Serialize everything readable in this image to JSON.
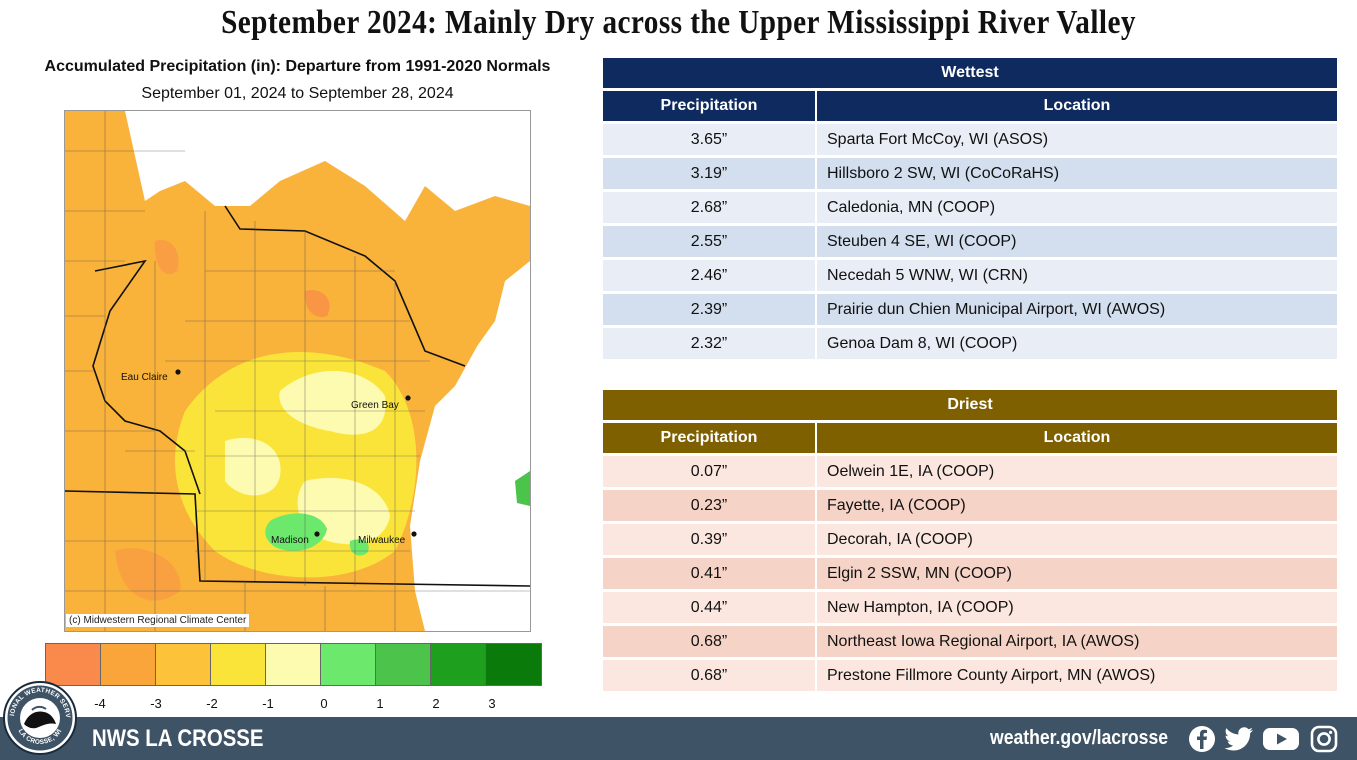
{
  "title": "September 2024:  Mainly Dry across the Upper Mississippi River Valley",
  "map": {
    "heading": "Accumulated Precipitation (in): Departure from 1991-2020 Normals",
    "dates": "September 01, 2024 to September 28, 2024",
    "credit": "(c) Midwestern Regional Climate Center",
    "cities": [
      "Eau Claire",
      "Green Bay",
      "Madison",
      "Milwaukee"
    ],
    "scale_colors": [
      "#f98a4c",
      "#f9a53a",
      "#fbc23a",
      "#fbe43a",
      "#fdfbb0",
      "#6ce86c",
      "#4cc44c",
      "#1ea01e",
      "#0a7a0a"
    ],
    "scale_labels": [
      "-4",
      "-3",
      "-2",
      "-1",
      "0",
      "1",
      "2",
      "3"
    ]
  },
  "wettest": {
    "title": "Wettest",
    "col_precip": "Precipitation",
    "col_location": "Location",
    "band_color": "#0f2a5e",
    "rows": [
      {
        "precip": "3.65”",
        "location": "Sparta Fort McCoy, WI (ASOS)"
      },
      {
        "precip": "3.19”",
        "location": "Hillsboro 2 SW, WI  (CoCoRaHS)"
      },
      {
        "precip": "2.68”",
        "location": "Caledonia, MN (COOP)"
      },
      {
        "precip": "2.55”",
        "location": "Steuben 4 SE, WI (COOP)"
      },
      {
        "precip": "2.46”",
        "location": "Necedah 5 WNW, WI (CRN)"
      },
      {
        "precip": "2.39”",
        "location": "Prairie dun Chien Municipal Airport, WI (AWOS)"
      },
      {
        "precip": "2.32”",
        "location": "Genoa Dam 8, WI (COOP)"
      }
    ]
  },
  "driest": {
    "title": "Driest",
    "col_precip": "Precipitation",
    "col_location": "Location",
    "band_color": "#7f6000",
    "rows": [
      {
        "precip": "0.07”",
        "location": "Oelwein 1E, IA (COOP)"
      },
      {
        "precip": "0.23”",
        "location": "Fayette, IA (COOP)"
      },
      {
        "precip": "0.39”",
        "location": "Decorah, IA (COOP)"
      },
      {
        "precip": "0.41”",
        "location": "Elgin 2 SSW, MN (COOP)"
      },
      {
        "precip": "0.44”",
        "location": "New Hampton, IA (COOP)"
      },
      {
        "precip": "0.68”",
        "location": "Northeast Iowa Regional Airport, IA (AWOS)"
      },
      {
        "precip": "0.68”",
        "location": "Prestone Fillmore County Airport, MN (AWOS)"
      }
    ]
  },
  "footer": {
    "office": "NWS LA CROSSE",
    "website": "weather.gov/lacrosse",
    "logo_ring_top": "NATIONAL WEATHER SERVICE",
    "logo_ring_bottom": "LA CROSSE, WI",
    "social_icons": [
      "facebook-icon",
      "twitter-icon",
      "youtube-icon",
      "instagram-icon"
    ]
  }
}
